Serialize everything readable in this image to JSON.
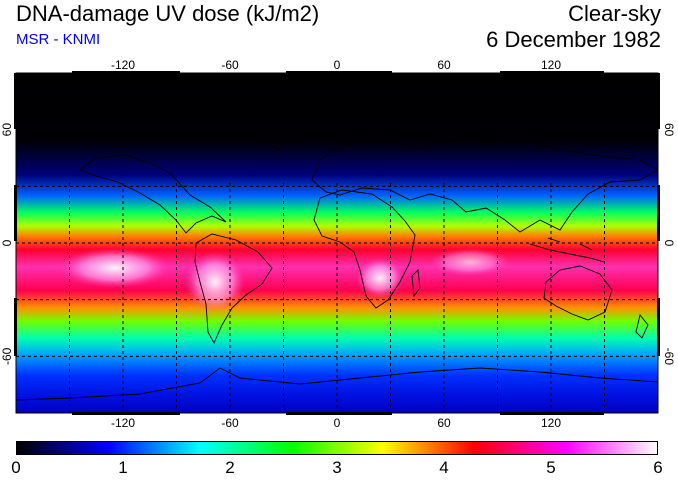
{
  "header": {
    "title": "DNA-damage UV dose (kJ/m2)",
    "subtitle": "MSR - KNMI",
    "mode": "Clear-sky",
    "date": "6 December 1982"
  },
  "map": {
    "longitude_ticks": [
      "-120",
      "-60",
      "0",
      "60",
      "120"
    ],
    "latitude_ticks": [
      "60",
      "0",
      "-60"
    ],
    "longitude_values": [
      -120,
      -60,
      0,
      60,
      120
    ],
    "latitude_values": [
      60,
      0,
      -60
    ],
    "lon_range": [
      -180,
      180
    ],
    "lat_range": [
      -90,
      90
    ],
    "gridline_lons": [
      -150,
      -120,
      -90,
      -60,
      -30,
      0,
      30,
      60,
      90,
      120,
      150
    ],
    "gridline_lats": [
      -60,
      -30,
      0,
      30,
      60
    ]
  },
  "colorbar": {
    "labels": [
      "0",
      "1",
      "2",
      "3",
      "4",
      "5",
      "6"
    ],
    "min": 0,
    "max": 6,
    "colors": [
      "#000000",
      "#000080",
      "#0000ff",
      "#0080ff",
      "#00ffff",
      "#00ff80",
      "#00ff00",
      "#80ff00",
      "#ffff00",
      "#ff8000",
      "#ff0000",
      "#ff0080",
      "#ff00ff",
      "#ff80ff",
      "#ffffff"
    ]
  }
}
